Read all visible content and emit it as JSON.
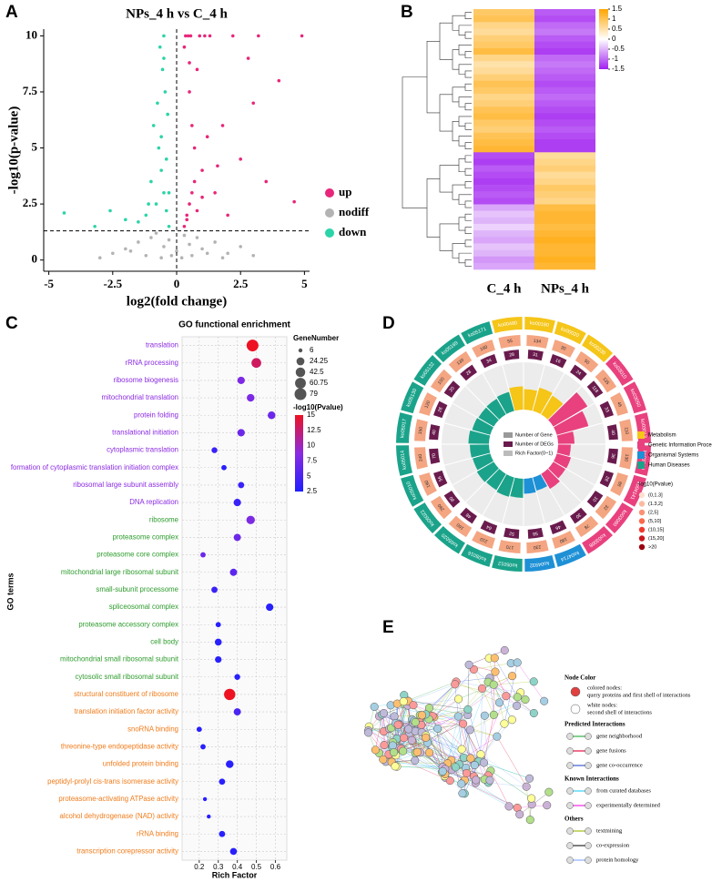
{
  "panels": [
    "A",
    "B",
    "C",
    "D",
    "E"
  ],
  "chart_data": [
    {
      "type": "scatter",
      "title": "NPs_4 h vs C_4 h",
      "xlabel": "log2(fold change)",
      "ylabel": "-log10(p-value)",
      "xlim": [
        -5.2,
        5.2
      ],
      "ylim": [
        -0.5,
        10.3
      ],
      "xticks": [
        -5,
        -2.5,
        0,
        2.5,
        5
      ],
      "yticks": [
        0,
        2.5,
        5,
        7.5,
        10
      ],
      "threshold_y": 1.3,
      "threshold_x": 0,
      "legend": "right",
      "series": [
        {
          "name": "up",
          "color": "#e8267a",
          "x": [
            0.3,
            0.4,
            0.5,
            0.6,
            0.7,
            0.8,
            1.0,
            1.2,
            1.5,
            1.8,
            2.0,
            2.5,
            3.0,
            3.5,
            4.0,
            4.6,
            0.35,
            0.45,
            0.55,
            0.9,
            1.1,
            0.5,
            0.6,
            0.8,
            1.3,
            2.2,
            0.4,
            0.7,
            1.0,
            1.6,
            2.8,
            4.9,
            0.3,
            0.5,
            3.2
          ],
          "values": [
            1.5,
            2.0,
            2.5,
            3.0,
            3.5,
            2.2,
            4.0,
            5.5,
            3.0,
            6.0,
            2.0,
            4.5,
            7.0,
            3.5,
            8.0,
            2.6,
            10,
            10,
            10,
            10,
            10,
            7.5,
            6.0,
            8.5,
            10,
            10,
            1.8,
            5.0,
            2.8,
            4.2,
            9.0,
            10,
            9.5,
            8.8,
            10
          ]
        },
        {
          "name": "nodiff",
          "color": "#b3b3b3",
          "x": [
            -2.5,
            -2,
            -1.5,
            -1,
            -0.8,
            -0.5,
            -0.3,
            0,
            0.3,
            0.5,
            0.8,
            1,
            1.5,
            2,
            2.5,
            3,
            -3,
            -1.2,
            0.2,
            -0.2,
            1.2,
            -0.6,
            0.6,
            1.8,
            -1.8
          ],
          "values": [
            0.3,
            0.5,
            0.8,
            1.0,
            1.2,
            0.6,
            0.9,
            0.4,
            1.1,
            0.7,
            1.0,
            0.5,
            0.8,
            0.3,
            0.6,
            0.2,
            0.1,
            0.2,
            0.1,
            0.2,
            0.3,
            0.1,
            0.2,
            0.1,
            0.4
          ]
        },
        {
          "name": "down",
          "color": "#2bd4a8",
          "x": [
            -0.3,
            -0.4,
            -0.5,
            -0.6,
            -0.7,
            -0.8,
            -1.0,
            -1.2,
            -1.5,
            -2.0,
            -2.6,
            -3.2,
            -4.4,
            -0.35,
            -0.45,
            -0.55,
            -0.65,
            -0.9,
            -0.5,
            -0.6,
            -0.4,
            -0.3,
            -1.1,
            -0.75,
            -0.5
          ],
          "values": [
            1.5,
            2.2,
            3.0,
            4.0,
            5.0,
            2.5,
            3.5,
            2.0,
            1.7,
            1.8,
            2.2,
            1.5,
            2.1,
            6.5,
            7.5,
            8.5,
            9.5,
            6.0,
            10,
            5.5,
            4.5,
            3.0,
            2.5,
            7.0,
            9.0
          ]
        }
      ]
    },
    {
      "type": "heatmap",
      "zlim": [
        -1.5,
        1.5
      ],
      "zticks": [
        1.5,
        1,
        0.5,
        0,
        -0.5,
        -1,
        -1.5
      ],
      "colors": {
        "low": "#a020f0",
        "mid": "#ffffff",
        "high": "#ffa500"
      },
      "series": [
        {
          "name": "C_4 h",
          "values": [
            0.9,
            1.0,
            0.7,
            0.6,
            0.8,
            0.9,
            1.1,
            0.7,
            0.5,
            0.6,
            0.8,
            1.0,
            0.9,
            0.7,
            0.8,
            1.0,
            1.1,
            0.9,
            0.8,
            1.0,
            1.1,
            1.2,
            -1.2,
            -1.3,
            -1.1,
            -1.2,
            -1.3,
            -1.2,
            -1.1,
            -1.2,
            -0.6,
            -0.4,
            -0.5,
            -0.3,
            -0.5,
            -0.6,
            -0.4,
            -0.5,
            -0.7,
            -0.6
          ]
        },
        {
          "name": "NPs_4 h",
          "values": [
            -1.1,
            -1.2,
            -1.0,
            -0.9,
            -1.1,
            -1.2,
            -1.3,
            -1.0,
            -0.9,
            -1.0,
            -1.1,
            -1.2,
            -1.1,
            -1.0,
            -1.1,
            -1.2,
            -1.3,
            -1.2,
            -1.1,
            -1.2,
            -1.3,
            -1.3,
            0.6,
            0.7,
            0.8,
            0.6,
            0.7,
            0.9,
            0.8,
            0.7,
            1.1,
            1.2,
            1.2,
            1.1,
            1.2,
            1.3,
            1.2,
            1.2,
            1.3,
            1.2
          ]
        }
      ]
    },
    {
      "type": "bubble",
      "title": "GO functional enrichment",
      "xlabel": "Rich Factor",
      "ylabel": "GO terms",
      "categories": [
        "translation",
        "rRNA processing",
        "ribosome biogenesis",
        "mitochondrial translation",
        "protein folding",
        "translational initiation",
        "cytoplasmic translation",
        "formation of cytoplasmic translation initiation complex",
        "ribosomal large subunit assembly",
        "DNA replication",
        "ribosome",
        "proteasome complex",
        "proteasome core complex",
        "mitochondrial large ribosomal subunit",
        "small-subunit processome",
        "spliceosomal complex",
        "proteasome accessory complex",
        "cell body",
        "mitochondrial small ribosomal subunit",
        "cytosolic small ribosomal subunit",
        "structural constituent of ribosome",
        "translation initiation factor activity",
        "snoRNA binding",
        "threonine-type endopeptidase activity",
        "unfolded protein binding",
        "peptidyl-prolyl cis-trans isomerase activity",
        "proteasome-activating ATPase activity",
        "alcohol dehydrogenase (NAD) activity",
        "rRNA binding",
        "transcription corepressor activity"
      ],
      "category_colors": [
        "#8b2be2",
        "#8b2be2",
        "#8b2be2",
        "#8b2be2",
        "#8b2be2",
        "#8b2be2",
        "#8b2be2",
        "#8b2be2",
        "#8b2be2",
        "#8b2be2",
        "#2e9c2e",
        "#2e9c2e",
        "#2e9c2e",
        "#2e9c2e",
        "#2e9c2e",
        "#2e9c2e",
        "#2e9c2e",
        "#2e9c2e",
        "#2e9c2e",
        "#2e9c2e",
        "#f07c1b",
        "#f07c1b",
        "#f07c1b",
        "#f07c1b",
        "#f07c1b",
        "#f07c1b",
        "#f07c1b",
        "#f07c1b",
        "#f07c1b",
        "#f07c1b"
      ],
      "values": [
        0.48,
        0.5,
        0.42,
        0.47,
        0.58,
        0.42,
        0.28,
        0.33,
        0.42,
        0.4,
        0.47,
        0.4,
        0.22,
        0.38,
        0.28,
        0.57,
        0.3,
        0.3,
        0.3,
        0.4,
        0.36,
        0.4,
        0.2,
        0.22,
        0.36,
        0.32,
        0.23,
        0.25,
        0.32,
        0.38
      ],
      "sizes": [
        79,
        45,
        20,
        22,
        22,
        20,
        10,
        8,
        12,
        20,
        30,
        18,
        8,
        18,
        12,
        20,
        8,
        16,
        14,
        10,
        70,
        18,
        8,
        8,
        22,
        12,
        6,
        6,
        12,
        16
      ],
      "color_values": [
        15,
        13,
        8,
        8,
        7,
        7,
        4,
        3,
        4,
        4,
        8,
        7,
        7,
        6,
        4,
        3,
        3,
        3,
        3,
        3,
        15,
        5,
        3,
        3,
        3,
        3,
        3,
        3,
        3,
        3
      ],
      "xlim": [
        0.11,
        0.66
      ],
      "xticks": [
        0.2,
        0.3,
        0.4,
        0.5,
        0.6
      ],
      "grid": true,
      "size_label": "GeneNumber",
      "size_ticks": [
        6,
        24.25,
        42.5,
        60.75,
        79
      ],
      "color_label": "-log10(Pvalue)",
      "clim": [
        2.5,
        15
      ],
      "color_ticks": [
        15,
        12.5,
        10,
        7.5,
        5,
        2.5
      ],
      "colorscale": [
        "#1f1fff",
        "#8a2be2",
        "#ee1122"
      ]
    },
    {
      "type": "circos",
      "categories": [
        "ko00480",
        "ko00190",
        "ko00020",
        "ko00230",
        "ko03010",
        "ko03050",
        "ko03013",
        "ko03040",
        "ko04141",
        "ko03060",
        "ko03008",
        "ko04714",
        "ko04932",
        "ko05012",
        "ko05016",
        "ko05020",
        "ko05022",
        "ko05010",
        "ko05014",
        "ko05017",
        "ko05130",
        "ko05132",
        "ko05169",
        "ko05171"
      ],
      "sector_class": [
        0,
        0,
        0,
        0,
        1,
        1,
        1,
        1,
        1,
        1,
        1,
        2,
        2,
        3,
        3,
        3,
        3,
        3,
        3,
        3,
        3,
        3,
        3,
        3
      ],
      "class_names": [
        "Metabolism",
        "Genetic Information Processing",
        "Organismal Systems",
        "Human Diseases"
      ],
      "class_colors": [
        "#f5c518",
        "#e8417e",
        "#1e90d6",
        "#1aa38a"
      ],
      "gene_counts": [
        55,
        134,
        30,
        50,
        135,
        46,
        110,
        130,
        88,
        32,
        78,
        180,
        230,
        170,
        210,
        160,
        290,
        190,
        240,
        150,
        120,
        100,
        130,
        160
      ],
      "deg_counts": [
        28,
        31,
        16,
        24,
        118,
        33,
        40,
        36,
        28,
        10,
        30,
        46,
        58,
        52,
        64,
        48,
        80,
        56,
        70,
        40,
        26,
        20,
        28,
        34
      ],
      "rich_factor": [
        0.51,
        0.45,
        0.53,
        0.48,
        0.87,
        0.72,
        0.36,
        0.28,
        0.32,
        0.31,
        0.38,
        0.3,
        0.33,
        0.42,
        0.44,
        0.41,
        0.43,
        0.4,
        0.42,
        0.45,
        0.41,
        0.39,
        0.4,
        0.43
      ],
      "center_legend": [
        "Number of Gene",
        "Number of DEGs",
        "Rich Factor(0~1)"
      ],
      "pvalue_label": "-log10(Pvalue)",
      "pvalue_bins": [
        "(0,1.3]",
        "(1.3,2]",
        "(2,5]",
        "(5,10]",
        "(10,15]",
        "(15,20]",
        ">20"
      ],
      "bin_colors": [
        "#fde0d0",
        "#fcbba1",
        "#fc9272",
        "#fb6a4a",
        "#ef3b2c",
        "#cb181d",
        "#99000d"
      ]
    }
  ],
  "network": {
    "legend": {
      "node_color": "Node Color",
      "colored_nodes": "colored nodes:",
      "query": "query proteins and first shell of interactions",
      "white_nodes": "white nodes:",
      "second_shell": "second shell of interactions",
      "predicted": "Predicted Interactions",
      "neighborhood": "gene neighborhood",
      "fusions": "gene fusions",
      "cooccurrence": "gene co-occurrence",
      "known": "Known Interactions",
      "curated": "from curated databases",
      "experimental": "experimentally determined",
      "others": "Others",
      "textmining": "textmining",
      "coexpression": "co-expression",
      "homology": "protein homology"
    }
  }
}
